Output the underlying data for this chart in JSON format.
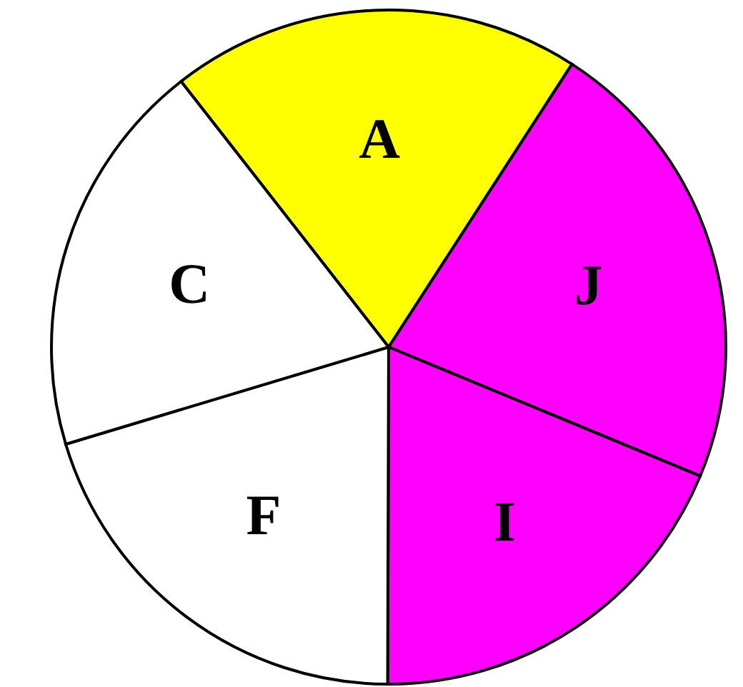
{
  "chart_data": {
    "type": "pie",
    "categories": [
      "A",
      "J",
      "I",
      "F",
      "C"
    ],
    "values": [
      19.7,
      22.1,
      18.8,
      20.3,
      19.1
    ],
    "colors": [
      "#ffff00",
      "#ff00ff",
      "#ff00ff",
      "#ffffff",
      "#ffffff"
    ]
  }
}
